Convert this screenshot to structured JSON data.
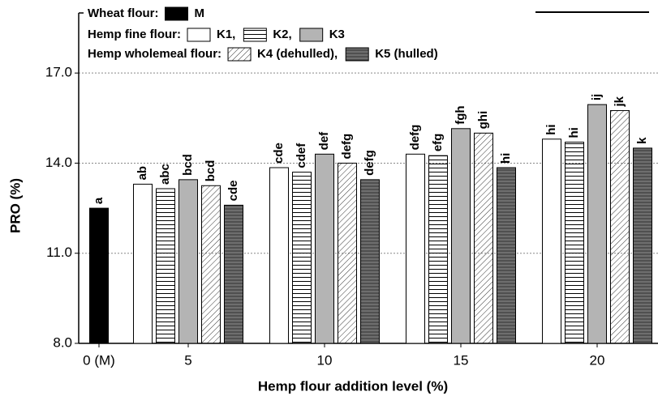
{
  "chart_data": {
    "type": "bar",
    "categories": [
      "0 (M)",
      "5",
      "10",
      "15",
      "20"
    ],
    "series": [
      {
        "name": "M",
        "color": "#000000",
        "hatch": "none",
        "values": [
          12.5,
          null,
          null,
          null,
          null
        ],
        "value_labels": [
          "a",
          null,
          null,
          null,
          null
        ]
      },
      {
        "name": "K1,",
        "color": "#ffffff",
        "hatch": "none",
        "values": [
          null,
          13.3,
          13.85,
          14.3,
          14.8
        ],
        "value_labels": [
          null,
          "ab",
          "cde",
          "defg",
          "hi"
        ]
      },
      {
        "name": "K2,",
        "color": "#ffffff",
        "hatch": "horizontal",
        "values": [
          null,
          13.15,
          13.7,
          14.25,
          14.7
        ],
        "value_labels": [
          null,
          "abc",
          "cdef",
          "efg",
          "hi"
        ]
      },
      {
        "name": "K3",
        "color": "#b4b4b4",
        "hatch": "none",
        "values": [
          null,
          13.45,
          14.3,
          15.15,
          15.95
        ],
        "value_labels": [
          null,
          "bcd",
          "def",
          "fgh",
          "ij"
        ]
      },
      {
        "name": "K4 (dehulled),",
        "color": "#ffffff",
        "hatch": "diagonal",
        "values": [
          null,
          13.25,
          14.0,
          15.0,
          15.75
        ],
        "value_labels": [
          null,
          "bcd",
          "defg",
          "ghi",
          "jk"
        ]
      },
      {
        "name": "K5 (hulled)",
        "color": "#6e6e6e",
        "hatch": "horizontal",
        "values": [
          null,
          12.6,
          13.45,
          13.85,
          14.5
        ],
        "value_labels": [
          null,
          "cde",
          "defg",
          "hi",
          "k"
        ]
      }
    ],
    "legend_titles": [
      "Wheat flour:",
      "Hemp fine flour:",
      "Hemp wholemeal flour:"
    ],
    "xlabel": "Hemp flour addition level (%)",
    "ylabel": "PRO (%)",
    "ylim": [
      8,
      19
    ],
    "yticks": [
      {
        "value": 8,
        "label": "8.0"
      },
      {
        "value": 11,
        "label": "11.0"
      },
      {
        "value": 14,
        "label": "14.0"
      },
      {
        "value": 17,
        "label": "17.0"
      }
    ],
    "grid": true
  }
}
